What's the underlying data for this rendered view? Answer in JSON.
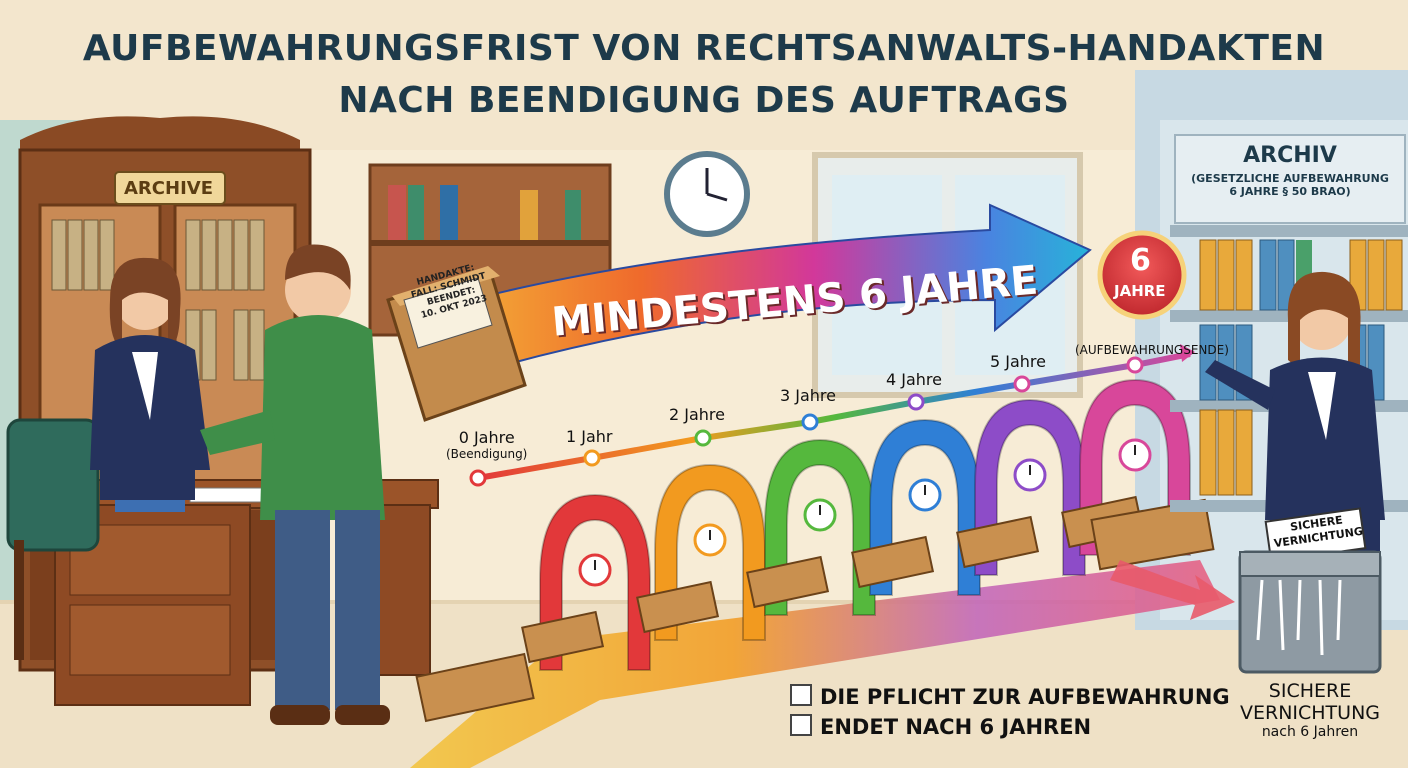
{
  "title": {
    "line1": "AUFBEWAHRUNGSFRIST VON RECHTSANWALTS-HANDAKTEN",
    "line2": "NACH BEENDIGUNG DES AUFTRAGS"
  },
  "office": {
    "cabinet_sign": "ARCHIVE"
  },
  "folder": {
    "label": "HANDAKTE:",
    "case": "FALL: SCHMIDT",
    "ended": "BEENDET:",
    "date": "10. OKT 2023"
  },
  "arrow": {
    "text": "MINDESTENS 6 JAHRE"
  },
  "badge": {
    "number": "6",
    "unit": "JAHRE"
  },
  "timeline": {
    "milestones": [
      {
        "label": "0 Jahre",
        "sub": "(Beendigung)"
      },
      {
        "label": "1 Jahr",
        "sub": ""
      },
      {
        "label": "2 Jahre",
        "sub": ""
      },
      {
        "label": "3 Jahre",
        "sub": ""
      },
      {
        "label": "4 Jahre",
        "sub": ""
      },
      {
        "label": "5 Jahre",
        "sub": ""
      },
      {
        "label": "",
        "sub": "(AUFBEWAHRUNGSENDE)"
      }
    ],
    "arch_colors": [
      "#e2383a",
      "#f29a1f",
      "#55b83d",
      "#2f7fd6",
      "#8d4cc8",
      "#d8479a"
    ],
    "book_label": "HANDAKTE: SCHMIDT"
  },
  "archive_sign": {
    "title": "ARCHIV",
    "line1": "(GESETZLICHE AUFBEWAHRUNG",
    "line2": "6 JAHRE § 50 BRAO)"
  },
  "shredder_sign": {
    "line1": "SICHERE",
    "line2": "VERNICHTUNG"
  },
  "checklist": [
    "DIE PFLICHT ZUR AUFBEWAHRUNG",
    "ENDET NACH 6 JAHREN"
  ],
  "footer_right": {
    "line1": "SICHERE",
    "line2": "VERNICHTUNG",
    "line3": "nach 6 Jahren"
  }
}
